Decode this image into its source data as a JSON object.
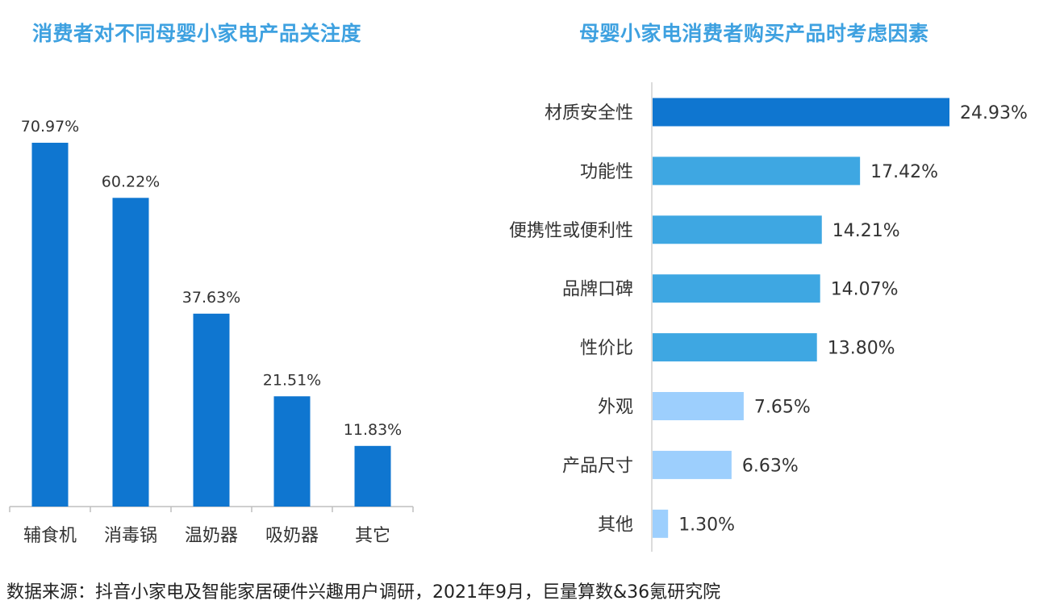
{
  "chart_data": [
    {
      "type": "bar",
      "title": "消费者对不同母婴小家电产品关注度",
      "categories": [
        "辅食机",
        "消毒锅",
        "温奶器",
        "吸奶器",
        "其它"
      ],
      "values": [
        70.97,
        60.22,
        37.63,
        21.51,
        11.83
      ],
      "value_labels": [
        "70.97%",
        "60.22%",
        "37.63%",
        "21.51%",
        "11.83%"
      ],
      "ylim": [
        0,
        76
      ],
      "grid": false,
      "color": "#0f76d0"
    },
    {
      "type": "bar",
      "orientation": "horizontal",
      "title": "母婴小家电消费者购买产品时考虑因素",
      "categories": [
        "材质安全性",
        "功能性",
        "便携性或便利性",
        "品牌口碑",
        "性价比",
        "外观",
        "产品尺寸",
        "其他"
      ],
      "values": [
        24.93,
        17.42,
        14.21,
        14.07,
        13.8,
        7.65,
        6.63,
        1.3
      ],
      "value_labels": [
        "24.93%",
        "17.42%",
        "14.21%",
        "14.07%",
        "13.80%",
        "7.65%",
        "6.63%",
        "1.30%"
      ],
      "colors": [
        "#0f76d0",
        "#3ea7e2",
        "#3ea7e2",
        "#3ea7e2",
        "#3ea7e2",
        "#9dcffd",
        "#9dcffd",
        "#9dcffd"
      ],
      "xlim": [
        0,
        25
      ],
      "grid": false
    }
  ],
  "source_note": "数据来源：抖音小家电及智能家居硬件兴趣用户调研，2021年9月，巨量算数&36氪研究院"
}
